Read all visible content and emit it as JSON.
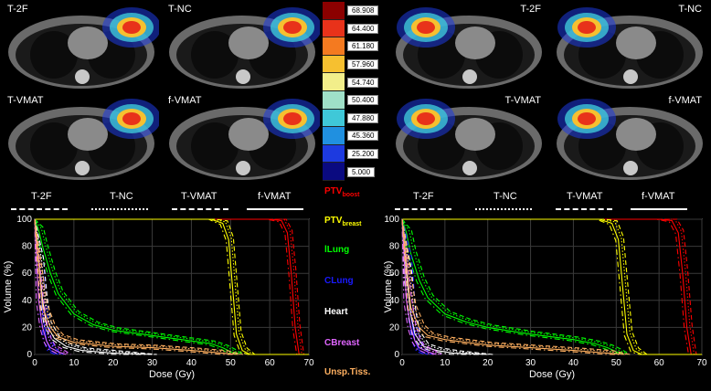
{
  "panels_left": [
    {
      "label": "T-2F"
    },
    {
      "label": "T-NC"
    },
    {
      "label": "T-VMAT"
    },
    {
      "label": "f-VMAT"
    }
  ],
  "panels_right": [
    {
      "label": "T-2F"
    },
    {
      "label": "T-NC"
    },
    {
      "label": "T-VMAT"
    },
    {
      "label": "f-VMAT"
    }
  ],
  "colorbar": {
    "labels": [
      "68.908",
      "64.400",
      "61.180",
      "57.960",
      "54.740",
      "50.400",
      "47.880",
      "45.360",
      "25.200",
      "5.000"
    ],
    "colors": [
      "#8b0000",
      "#e8321a",
      "#f47a20",
      "#f6c030",
      "#f2ee8a",
      "#9fe0c8",
      "#3fc8d8",
      "#2090e0",
      "#1d3ae0",
      "#0a0a80"
    ]
  },
  "techniques": [
    {
      "label": "T-2F",
      "style": "dashed"
    },
    {
      "label": "T-NC",
      "style": "dotted"
    },
    {
      "label": "T-VMAT",
      "style": "dashdot"
    },
    {
      "label": "f-VMAT",
      "style": "solid"
    }
  ],
  "structures": [
    {
      "name": "PTV",
      "sub": "boost",
      "color": "#ff0000"
    },
    {
      "name": "PTV",
      "sub": "breast",
      "color": "#ffff00"
    },
    {
      "name": "lLung",
      "sub": "",
      "color": "#00ff00"
    },
    {
      "name": "CLung",
      "sub": "",
      "color": "#1a1aff"
    },
    {
      "name": "Heart",
      "sub": "",
      "color": "#ffffff"
    },
    {
      "name": "CBreast",
      "sub": "",
      "color": "#e066ff"
    },
    {
      "name": "Unsp.Tiss.",
      "sub": "",
      "color": "#ffb060"
    }
  ],
  "chart_data": [
    {
      "type": "line",
      "title": "",
      "xlabel": "Dose (Gy)",
      "ylabel": "Volume (%)",
      "xlim": [
        0,
        70
      ],
      "ylim": [
        0,
        100
      ],
      "xticks": [
        0,
        10,
        20,
        30,
        40,
        50,
        60,
        70
      ],
      "yticks": [
        0,
        20,
        40,
        60,
        80,
        100
      ],
      "grid": true,
      "series": [
        {
          "name": "PTVboost",
          "color": "#ff0000",
          "x": [
            0,
            60,
            63,
            64.5,
            65.5,
            66.5,
            67.5,
            70
          ],
          "y": [
            100,
            100,
            99,
            90,
            60,
            20,
            0,
            0
          ]
        },
        {
          "name": "PTVbreast",
          "color": "#ffff00",
          "x": [
            0,
            45,
            48,
            49.5,
            50.5,
            51.5,
            53,
            55,
            70
          ],
          "y": [
            100,
            100,
            97,
            85,
            50,
            15,
            3,
            0,
            0
          ]
        },
        {
          "name": "lLung",
          "color": "#00ff00",
          "x": [
            0,
            1,
            2,
            4,
            6,
            10,
            15,
            20,
            30,
            40,
            45,
            48,
            50,
            52
          ],
          "y": [
            100,
            92,
            80,
            60,
            45,
            30,
            22,
            18,
            14,
            10,
            8,
            5,
            2,
            0
          ]
        },
        {
          "name": "CLung",
          "color": "#1a1aff",
          "x": [
            0,
            1,
            2,
            3,
            4,
            6
          ],
          "y": [
            100,
            70,
            30,
            10,
            3,
            0
          ]
        },
        {
          "name": "Heart",
          "color": "#ffffff",
          "x": [
            0,
            1,
            2,
            3,
            5,
            8,
            12,
            20,
            30
          ],
          "y": [
            100,
            70,
            40,
            22,
            12,
            6,
            3,
            1,
            0
          ]
        },
        {
          "name": "CBreast",
          "color": "#e066ff",
          "x": [
            0,
            1,
            2,
            3,
            4,
            6,
            8
          ],
          "y": [
            100,
            40,
            20,
            10,
            5,
            2,
            0
          ]
        },
        {
          "name": "Unsp.Tiss.",
          "color": "#ffb060",
          "x": [
            0,
            2,
            4,
            6,
            10,
            20,
            30,
            40,
            48,
            52
          ],
          "y": [
            100,
            35,
            20,
            13,
            9,
            6,
            5,
            3,
            1,
            0
          ]
        }
      ]
    },
    {
      "type": "line",
      "title": "",
      "xlabel": "Dose (Gy)",
      "ylabel": "Volume (%)",
      "xlim": [
        0,
        70
      ],
      "ylim": [
        0,
        100
      ],
      "xticks": [
        0,
        10,
        20,
        30,
        40,
        50,
        60,
        70
      ],
      "yticks": [
        0,
        20,
        40,
        60,
        80,
        100
      ],
      "grid": true,
      "series": [
        {
          "name": "PTVboost",
          "color": "#ff0000",
          "x": [
            0,
            60,
            63,
            64.5,
            65.5,
            66.5,
            67.5,
            70
          ],
          "y": [
            100,
            100,
            99,
            90,
            60,
            20,
            0,
            0
          ]
        },
        {
          "name": "PTVbreast",
          "color": "#ffff00",
          "x": [
            0,
            46,
            49,
            50.5,
            51.5,
            52.5,
            54,
            56,
            70
          ],
          "y": [
            100,
            100,
            97,
            85,
            50,
            15,
            3,
            0,
            0
          ]
        },
        {
          "name": "lLung",
          "color": "#00ff00",
          "x": [
            0,
            1,
            2,
            4,
            6,
            10,
            15,
            20,
            30,
            40,
            45,
            48,
            50,
            52
          ],
          "y": [
            100,
            90,
            75,
            55,
            42,
            30,
            24,
            20,
            15,
            11,
            8,
            5,
            2,
            0
          ]
        },
        {
          "name": "CLung",
          "color": "#1a1aff",
          "x": [
            0,
            1,
            2,
            3,
            4,
            6
          ],
          "y": [
            100,
            70,
            30,
            10,
            3,
            0
          ]
        },
        {
          "name": "Heart",
          "color": "#ffffff",
          "x": [
            0,
            1,
            2,
            3,
            5,
            8,
            12,
            20
          ],
          "y": [
            100,
            60,
            30,
            15,
            6,
            3,
            1,
            0
          ]
        },
        {
          "name": "CBreast",
          "color": "#e066ff",
          "x": [
            0,
            1,
            2,
            3,
            4,
            6,
            8
          ],
          "y": [
            100,
            40,
            20,
            10,
            5,
            2,
            0
          ]
        },
        {
          "name": "Unsp.Tiss.",
          "color": "#ffb060",
          "x": [
            0,
            2,
            4,
            6,
            10,
            20,
            30,
            40,
            48,
            52
          ],
          "y": [
            100,
            35,
            20,
            14,
            11,
            7,
            5,
            3,
            1,
            0
          ]
        }
      ]
    }
  ]
}
